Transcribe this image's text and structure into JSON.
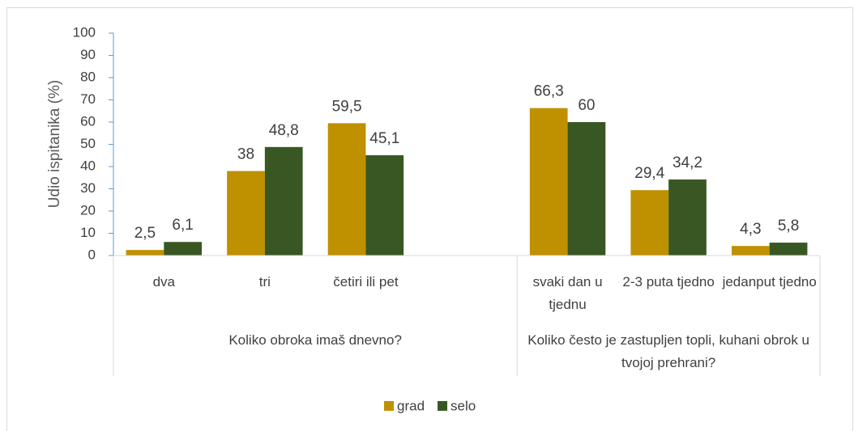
{
  "chart_data": {
    "type": "bar",
    "y_label": "Udio ispitanika (%)",
    "categories": [
      "dva",
      "tri",
      "četiri ili pet",
      null,
      "svaki dan u tjednu",
      "2-3 puta tjedno",
      "jedanput tjedno"
    ],
    "groups": [
      {
        "name": "Koliko obroka imaš dnevno?",
        "span": 4
      },
      {
        "name": "Koliko često je zastupljen topli, kuhani obrok u tvojoj prehrani?",
        "span": 3
      }
    ],
    "series": [
      {
        "name": "grad",
        "color": "#bf9000",
        "values": [
          2.5,
          38,
          59.5,
          null,
          66.3,
          29.4,
          4.3
        ],
        "value_labels": [
          "2,5",
          "38",
          "59,5",
          null,
          "66,3",
          "29,4",
          "4,3"
        ]
      },
      {
        "name": "selo",
        "color": "#385723",
        "values": [
          6.1,
          48.8,
          45.1,
          null,
          60,
          34.2,
          5.8
        ],
        "value_labels": [
          "6,1",
          "48,8",
          "45,1",
          null,
          "60",
          "34,2",
          "5,8"
        ]
      }
    ],
    "ylim": [
      0,
      100
    ],
    "yticks": [
      0,
      10,
      20,
      30,
      40,
      50,
      60,
      70,
      80,
      90,
      100
    ],
    "legend": "bottom"
  }
}
